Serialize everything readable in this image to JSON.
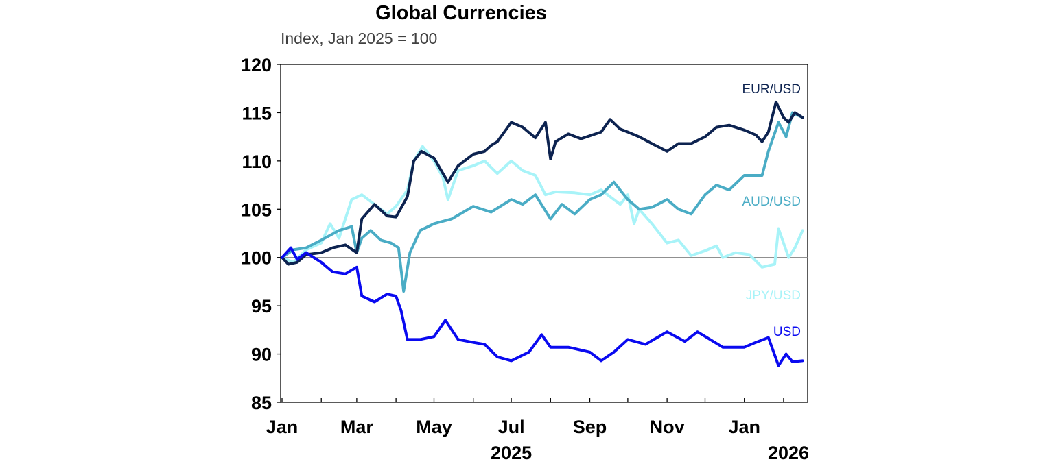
{
  "chart_data": {
    "type": "line",
    "title": "Global Currencies",
    "subtitle": "Index, Jan 2025 = 100",
    "xlabel": "",
    "ylabel": "",
    "ylim": [
      85,
      120
    ],
    "yticks": [
      "85",
      "90",
      "95",
      "100",
      "105",
      "110",
      "115",
      "120"
    ],
    "xlim": [
      "2025-01-01",
      "2026-02-20"
    ],
    "xticks": [
      {
        "date": "2025-01-01",
        "label": "Jan"
      },
      {
        "date": "2025-03-01",
        "label": "Mar"
      },
      {
        "date": "2025-05-01",
        "label": "May"
      },
      {
        "date": "2025-07-01",
        "label": "Jul"
      },
      {
        "date": "2025-09-01",
        "label": "Sep"
      },
      {
        "date": "2025-11-01",
        "label": "Nov"
      },
      {
        "date": "2026-01-01",
        "label": "Jan"
      }
    ],
    "year_labels": [
      {
        "date": "2025-07-01",
        "label": "2025"
      },
      {
        "date": "2026-01-25",
        "label": "2026"
      }
    ],
    "reference_line": 100,
    "grid": false,
    "series": [
      {
        "name": "EUR/USD",
        "color": "#0d2350",
        "points": [
          [
            "2025-01-01",
            100
          ],
          [
            "2025-01-06",
            99.3
          ],
          [
            "2025-01-13",
            99.5
          ],
          [
            "2025-01-20",
            100.3
          ],
          [
            "2025-02-01",
            100.5
          ],
          [
            "2025-02-10",
            101
          ],
          [
            "2025-02-20",
            101.3
          ],
          [
            "2025-03-01",
            100.5
          ],
          [
            "2025-03-05",
            104
          ],
          [
            "2025-03-15",
            105.5
          ],
          [
            "2025-03-25",
            104.3
          ],
          [
            "2025-04-01",
            104.2
          ],
          [
            "2025-04-10",
            106.3
          ],
          [
            "2025-04-15",
            110
          ],
          [
            "2025-04-21",
            111
          ],
          [
            "2025-05-01",
            110.3
          ],
          [
            "2025-05-12",
            107.8
          ],
          [
            "2025-05-20",
            109.5
          ],
          [
            "2025-06-01",
            110.7
          ],
          [
            "2025-06-10",
            111
          ],
          [
            "2025-06-15",
            111.6
          ],
          [
            "2025-06-20",
            112
          ],
          [
            "2025-07-01",
            114
          ],
          [
            "2025-07-10",
            113.5
          ],
          [
            "2025-07-20",
            112.4
          ],
          [
            "2025-07-28",
            114
          ],
          [
            "2025-08-01",
            110.2
          ],
          [
            "2025-08-05",
            112
          ],
          [
            "2025-08-15",
            112.8
          ],
          [
            "2025-08-25",
            112.3
          ],
          [
            "2025-09-01",
            112.6
          ],
          [
            "2025-09-10",
            113
          ],
          [
            "2025-09-17",
            114.3
          ],
          [
            "2025-09-25",
            113.3
          ],
          [
            "2025-10-01",
            113
          ],
          [
            "2025-10-10",
            112.5
          ],
          [
            "2025-10-20",
            111.8
          ],
          [
            "2025-11-01",
            111
          ],
          [
            "2025-11-10",
            111.8
          ],
          [
            "2025-11-20",
            111.8
          ],
          [
            "2025-12-01",
            112.5
          ],
          [
            "2025-12-10",
            113.5
          ],
          [
            "2025-12-20",
            113.7
          ],
          [
            "2026-01-01",
            113.2
          ],
          [
            "2026-01-10",
            112.7
          ],
          [
            "2026-01-15",
            112
          ],
          [
            "2026-01-20",
            113
          ],
          [
            "2026-01-26",
            116.1
          ],
          [
            "2026-02-01",
            114.5
          ],
          [
            "2026-02-05",
            114
          ],
          [
            "2026-02-10",
            115
          ],
          [
            "2026-02-16",
            114.5
          ]
        ]
      },
      {
        "name": "AUD/USD",
        "color": "#4aacc5",
        "points": [
          [
            "2025-01-01",
            100
          ],
          [
            "2025-01-10",
            100.8
          ],
          [
            "2025-01-20",
            101
          ],
          [
            "2025-02-01",
            101.8
          ],
          [
            "2025-02-15",
            102.8
          ],
          [
            "2025-02-25",
            103.2
          ],
          [
            "2025-03-01",
            100.5
          ],
          [
            "2025-03-05",
            102
          ],
          [
            "2025-03-12",
            102.8
          ],
          [
            "2025-03-20",
            101.8
          ],
          [
            "2025-03-28",
            101.5
          ],
          [
            "2025-04-03",
            101
          ],
          [
            "2025-04-07",
            96.5
          ],
          [
            "2025-04-12",
            100.5
          ],
          [
            "2025-04-20",
            102.8
          ],
          [
            "2025-05-01",
            103.5
          ],
          [
            "2025-05-15",
            104
          ],
          [
            "2025-06-01",
            105.3
          ],
          [
            "2025-06-15",
            104.7
          ],
          [
            "2025-07-01",
            106
          ],
          [
            "2025-07-10",
            105.5
          ],
          [
            "2025-07-20",
            106.5
          ],
          [
            "2025-08-01",
            104
          ],
          [
            "2025-08-10",
            105.5
          ],
          [
            "2025-08-20",
            104.5
          ],
          [
            "2025-09-01",
            106
          ],
          [
            "2025-09-10",
            106.5
          ],
          [
            "2025-09-20",
            107.8
          ],
          [
            "2025-10-01",
            106
          ],
          [
            "2025-10-10",
            105
          ],
          [
            "2025-10-20",
            105.2
          ],
          [
            "2025-11-01",
            106
          ],
          [
            "2025-11-10",
            105
          ],
          [
            "2025-11-20",
            104.5
          ],
          [
            "2025-12-01",
            106.5
          ],
          [
            "2025-12-10",
            107.5
          ],
          [
            "2025-12-20",
            107
          ],
          [
            "2026-01-01",
            108.5
          ],
          [
            "2026-01-15",
            108.5
          ],
          [
            "2026-01-20",
            111
          ],
          [
            "2026-01-28",
            114
          ],
          [
            "2026-02-03",
            112.5
          ],
          [
            "2026-02-08",
            115
          ],
          [
            "2026-02-16",
            114.5
          ]
        ]
      },
      {
        "name": "JPY/USD",
        "color": "#a8f3f8",
        "points": [
          [
            "2025-01-01",
            100
          ],
          [
            "2025-01-10",
            99.5
          ],
          [
            "2025-01-20",
            100.8
          ],
          [
            "2025-02-01",
            101.5
          ],
          [
            "2025-02-08",
            103.5
          ],
          [
            "2025-02-15",
            102
          ],
          [
            "2025-02-25",
            106
          ],
          [
            "2025-03-05",
            106.5
          ],
          [
            "2025-03-15",
            105.5
          ],
          [
            "2025-03-25",
            104.5
          ],
          [
            "2025-04-01",
            105.3
          ],
          [
            "2025-04-10",
            107
          ],
          [
            "2025-04-15",
            110
          ],
          [
            "2025-04-22",
            111.5
          ],
          [
            "2025-05-01",
            110
          ],
          [
            "2025-05-08",
            108.3
          ],
          [
            "2025-05-12",
            106
          ],
          [
            "2025-05-20",
            109
          ],
          [
            "2025-06-01",
            109.5
          ],
          [
            "2025-06-10",
            110
          ],
          [
            "2025-06-20",
            108.7
          ],
          [
            "2025-07-01",
            110
          ],
          [
            "2025-07-10",
            109
          ],
          [
            "2025-07-20",
            108.5
          ],
          [
            "2025-07-28",
            106.5
          ],
          [
            "2025-08-05",
            106.8
          ],
          [
            "2025-08-20",
            106.7
          ],
          [
            "2025-09-01",
            106.5
          ],
          [
            "2025-09-10",
            107
          ],
          [
            "2025-09-25",
            105.5
          ],
          [
            "2025-10-01",
            106.5
          ],
          [
            "2025-10-06",
            103.5
          ],
          [
            "2025-10-10",
            105
          ],
          [
            "2025-10-20",
            103.5
          ],
          [
            "2025-11-01",
            101.5
          ],
          [
            "2025-11-10",
            101.8
          ],
          [
            "2025-11-20",
            100.2
          ],
          [
            "2025-12-01",
            100.7
          ],
          [
            "2025-12-10",
            101.2
          ],
          [
            "2025-12-15",
            100
          ],
          [
            "2025-12-25",
            100.5
          ],
          [
            "2026-01-05",
            100.3
          ],
          [
            "2026-01-15",
            99
          ],
          [
            "2026-01-25",
            99.3
          ],
          [
            "2026-01-28",
            103
          ],
          [
            "2026-02-05",
            100
          ],
          [
            "2026-02-10",
            101
          ],
          [
            "2026-02-16",
            102.8
          ]
        ]
      },
      {
        "name": "USD",
        "color": "#0a0af0",
        "points": [
          [
            "2025-01-01",
            100
          ],
          [
            "2025-01-08",
            101
          ],
          [
            "2025-01-13",
            99.8
          ],
          [
            "2025-01-20",
            100.5
          ],
          [
            "2025-02-01",
            99.5
          ],
          [
            "2025-02-10",
            98.5
          ],
          [
            "2025-02-20",
            98.3
          ],
          [
            "2025-03-01",
            99
          ],
          [
            "2025-03-05",
            96
          ],
          [
            "2025-03-15",
            95.4
          ],
          [
            "2025-03-25",
            96.2
          ],
          [
            "2025-04-01",
            96
          ],
          [
            "2025-04-05",
            94.5
          ],
          [
            "2025-04-10",
            91.5
          ],
          [
            "2025-04-20",
            91.5
          ],
          [
            "2025-05-01",
            91.8
          ],
          [
            "2025-05-10",
            93.5
          ],
          [
            "2025-05-20",
            91.5
          ],
          [
            "2025-06-01",
            91.2
          ],
          [
            "2025-06-10",
            91
          ],
          [
            "2025-06-20",
            89.7
          ],
          [
            "2025-07-01",
            89.3
          ],
          [
            "2025-07-15",
            90.2
          ],
          [
            "2025-07-25",
            92
          ],
          [
            "2025-08-01",
            90.7
          ],
          [
            "2025-08-15",
            90.7
          ],
          [
            "2025-09-01",
            90.2
          ],
          [
            "2025-09-10",
            89.3
          ],
          [
            "2025-09-20",
            90.2
          ],
          [
            "2025-10-01",
            91.5
          ],
          [
            "2025-10-15",
            91
          ],
          [
            "2025-11-01",
            92.3
          ],
          [
            "2025-11-15",
            91.3
          ],
          [
            "2025-11-25",
            92.3
          ],
          [
            "2025-12-05",
            91.5
          ],
          [
            "2025-12-15",
            90.7
          ],
          [
            "2026-01-01",
            90.7
          ],
          [
            "2026-01-10",
            91.2
          ],
          [
            "2026-01-20",
            91.7
          ],
          [
            "2026-01-28",
            88.8
          ],
          [
            "2026-02-03",
            90
          ],
          [
            "2026-02-08",
            89.2
          ],
          [
            "2026-02-16",
            89.3
          ]
        ]
      }
    ]
  }
}
